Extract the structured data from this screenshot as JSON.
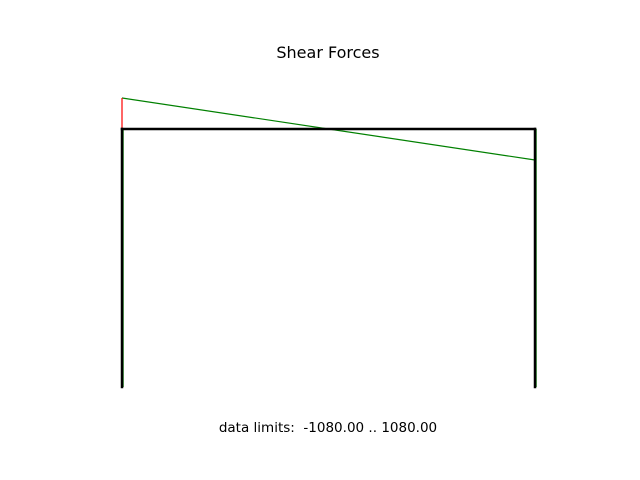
{
  "title": "Shear Forces",
  "data_limits": {
    "prefix": "data limits:",
    "min": "-1080.00",
    "separator": "..",
    "max": "1080.00"
  },
  "colors": {
    "frame": "#000000",
    "positive_shear": "#008000",
    "negative_shear": "#ff0000",
    "background": "#ffffff"
  },
  "chart_data": {
    "type": "line",
    "title": "Shear Forces",
    "structure": "portal frame",
    "members": [
      "left-column",
      "beam",
      "right-column"
    ],
    "data_limits": [
      -1080.0,
      1080.0
    ],
    "series": [
      {
        "member": "beam",
        "x": [
          0,
          1
        ],
        "shear": [
          1080.0,
          -1080.0
        ]
      },
      {
        "member": "left-column",
        "x": [
          0,
          1
        ],
        "shear": [
          -38.5,
          -38.5
        ]
      },
      {
        "member": "right-column",
        "x": [
          0,
          1
        ],
        "shear": [
          38.5,
          38.5
        ]
      }
    ]
  }
}
